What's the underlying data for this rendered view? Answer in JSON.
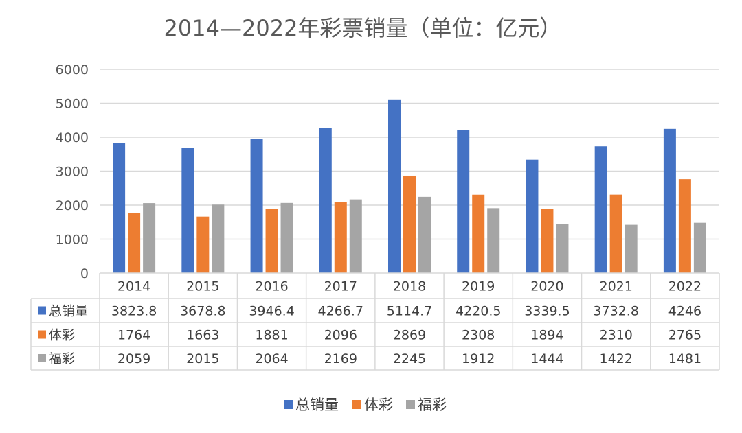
{
  "chart_data": {
    "type": "bar",
    "title": "2014—2022年彩票销量（单位：亿元）",
    "categories": [
      "2014",
      "2015",
      "2016",
      "2017",
      "2018",
      "2019",
      "2020",
      "2021",
      "2022"
    ],
    "series": [
      {
        "name": "总销量",
        "color": "#4472C4",
        "values": [
          3823.8,
          3678.8,
          3946.4,
          4266.7,
          5114.7,
          4220.5,
          3339.5,
          3732.8,
          4246
        ],
        "labels": [
          "3823.8",
          "3678.8",
          "3946.4",
          "4266.7",
          "5114.7",
          "4220.5",
          "3339.5",
          "3732.8",
          "4246"
        ]
      },
      {
        "name": "体彩",
        "color": "#ED7D31",
        "values": [
          1764,
          1663,
          1881,
          2096,
          2869,
          2308,
          1894,
          2310,
          2765
        ],
        "labels": [
          "1764",
          "1663",
          "1881",
          "2096",
          "2869",
          "2308",
          "1894",
          "2310",
          "2765"
        ]
      },
      {
        "name": "福彩",
        "color": "#A5A5A5",
        "values": [
          2059,
          2015,
          2064,
          2169,
          2245,
          1912,
          1444,
          1422,
          1481
        ],
        "labels": [
          "2059",
          "2015",
          "2064",
          "2169",
          "2245",
          "1912",
          "1444",
          "1422",
          "1481"
        ]
      }
    ],
    "ylim": [
      0,
      6000
    ],
    "yticks": [
      "0",
      "1000",
      "2000",
      "3000",
      "4000",
      "5000",
      "6000"
    ],
    "grid": true,
    "legend": "bottom",
    "data_table": true
  }
}
